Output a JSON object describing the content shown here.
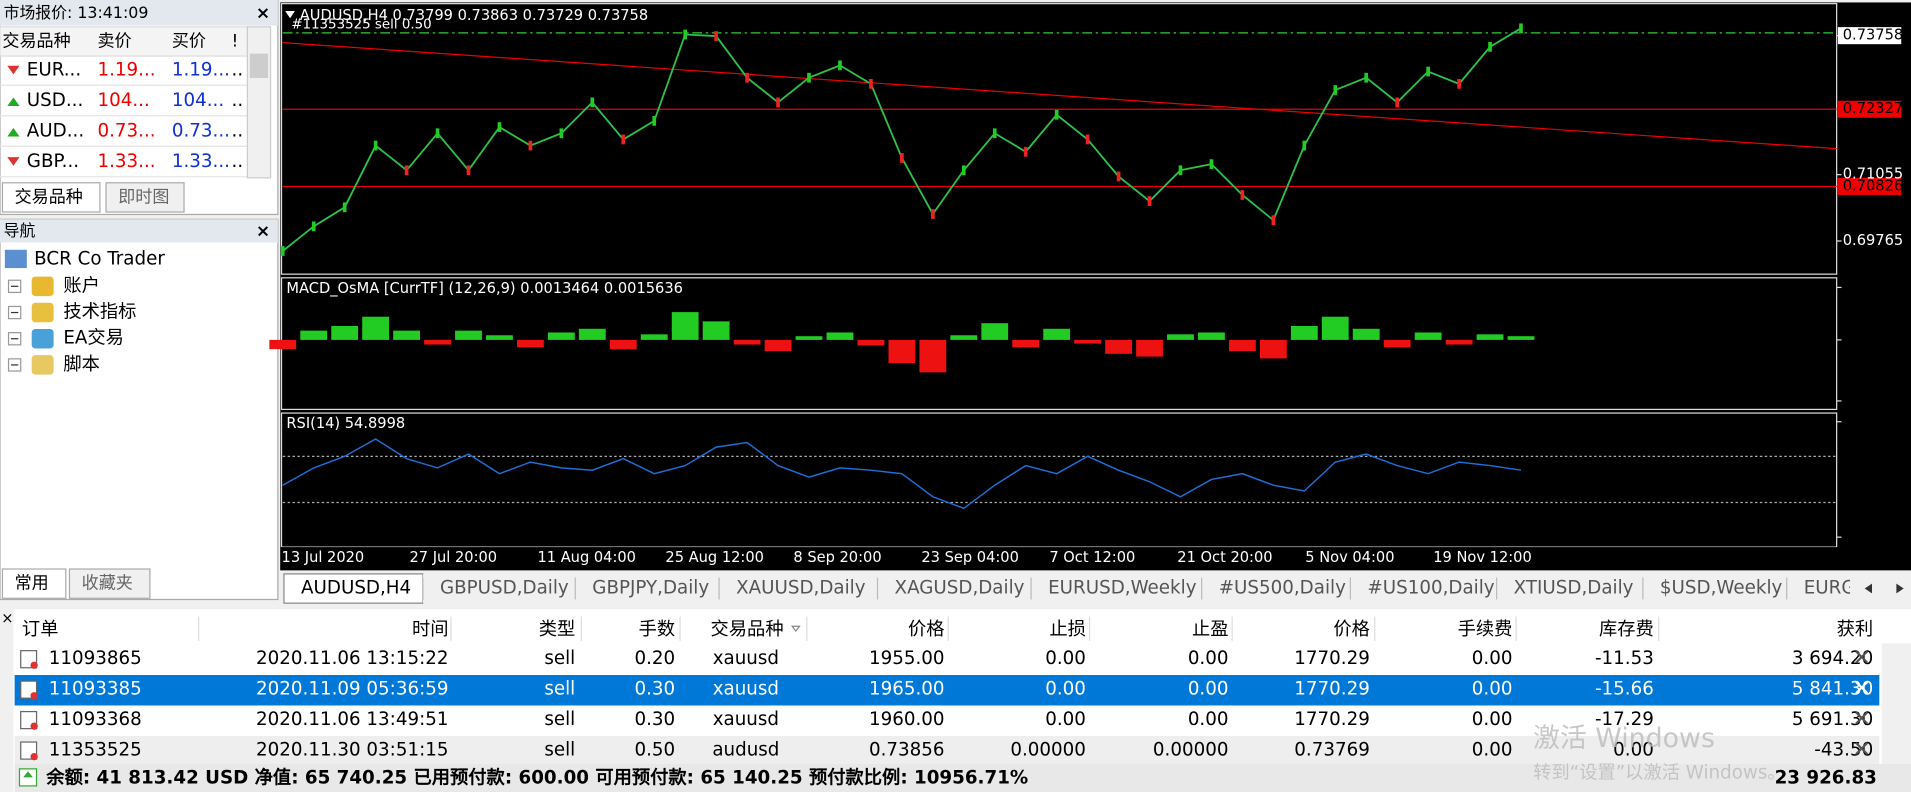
{
  "market_watch": {
    "title": "市场报价: 13:41:09",
    "columns": [
      "交易品种",
      "卖价",
      "买价",
      "!"
    ],
    "rows": [
      [
        "EUR...",
        "1.19...",
        "1.19...",
        ".."
      ],
      [
        "USD...",
        "104...",
        "104...",
        ".."
      ],
      [
        "AUD...",
        "0.73...",
        "0.73...",
        ".."
      ],
      [
        "GBP...",
        "1.33...",
        "1.33...",
        ".."
      ]
    ],
    "tabs": [
      "交易品种",
      "即时图"
    ]
  },
  "navigator": {
    "title": "导航",
    "root": "BCR Co Trader",
    "items": [
      "账户",
      "技术指标",
      "EA交易",
      "脚本"
    ],
    "tabs": [
      "常用",
      "收藏夹"
    ]
  },
  "chart": {
    "header": "AUDUSD,H4  0.73799 0.73863 0.73729 0.73758",
    "order_label": "#11353525 sell 0.50",
    "ylim": [
      0.6912,
      0.7438
    ],
    "yticks": [
      0.69765,
      0.70826,
      0.71055,
      0.72327,
      0.73758
    ],
    "close": [
      0.6957,
      0.7005,
      0.7042,
      0.7162,
      0.7114,
      0.7186,
      0.7114,
      0.7198,
      0.7162,
      0.7186,
      0.7246,
      0.7174,
      0.721,
      0.7378,
      0.7375,
      0.7294,
      0.7246,
      0.7294,
      0.7318,
      0.7282,
      0.7138,
      0.7029,
      0.7114,
      0.7186,
      0.715,
      0.7222,
      0.7174,
      0.7102,
      0.7054,
      0.7114,
      0.7126,
      0.7066,
      0.7017,
      0.7162,
      0.727,
      0.7294,
      0.7246,
      0.7306,
      0.7282,
      0.7354,
      0.739
    ],
    "x_labels": [
      "13 Jul 2020",
      "27 Jul 20:00",
      "11 Aug 04:00",
      "25 Aug 12:00",
      "8 Sep 20:00",
      "23 Sep 04:00",
      "7 Oct 12:00",
      "21 Oct 20:00",
      "5 Nov 04:00",
      "19 Nov 12:00"
    ],
    "macd": {
      "title": "MACD_OsMA [CurrTF] (12,26,9) 0.0013464 0.0015636",
      "ylim": [
        -0.0075,
        0.0067
      ],
      "yticks": [
        -0.006587,
        {
          "value": 0,
          "label": "0.00"
        },
        0.005661
      ],
      "values": [
        -0.001,
        0.001,
        0.0015,
        0.0025,
        0.001,
        -0.0005,
        0.001,
        0.0005,
        -0.0008,
        0.0008,
        0.0012,
        -0.001,
        0.0006,
        0.003,
        0.002,
        -0.0005,
        -0.0012,
        0.0004,
        0.0008,
        -0.0006,
        -0.0025,
        -0.0035,
        0.0005,
        0.0018,
        -0.0008,
        0.0012,
        -0.0004,
        -0.0015,
        -0.0018,
        0.0006,
        0.0008,
        -0.0012,
        -0.002,
        0.0015,
        0.0025,
        0.0012,
        -0.0008,
        0.0008,
        -0.0005,
        0.0006,
        0.0004
      ]
    },
    "rsi": {
      "title": "RSI(14) 54.8998",
      "ylim": [
        -8.6,
        107.5
      ],
      "yticks": [
        0,
        30,
        70,
        100
      ],
      "values": [
        45,
        60,
        70,
        85,
        68,
        60,
        72,
        55,
        65,
        60,
        58,
        68,
        55,
        62,
        78,
        82,
        62,
        52,
        60,
        58,
        55,
        35,
        25,
        45,
        62,
        55,
        70,
        58,
        48,
        35,
        50,
        55,
        45,
        40,
        65,
        72,
        62,
        55,
        65,
        62,
        58
      ]
    },
    "tabs": [
      "AUDUSD,H4",
      "GBPUSD,Daily",
      "GBPJPY,Daily",
      "XAUUSD,Daily",
      "XAGUSD,Daily",
      "EURUSD,Weekly",
      "#US500,Daily",
      "#US100,Daily",
      "XTIUSD,Daily",
      "$USD,Weekly",
      "EURG"
    ]
  },
  "terminal": {
    "columns": [
      "订单",
      "时间",
      "类型",
      "手数",
      "交易品种",
      "价格",
      "止损",
      "止盈",
      "价格",
      "手续费",
      "库存费",
      "获利"
    ],
    "rows": [
      [
        "11093865",
        "2020.11.06 13:15:22",
        "sell",
        "0.20",
        "xauusd",
        "1955.00",
        "0.00",
        "0.00",
        "1770.29",
        "0.00",
        "-11.53",
        "3 694.20"
      ],
      [
        "11093385",
        "2020.11.09 05:36:59",
        "sell",
        "0.30",
        "xauusd",
        "1965.00",
        "0.00",
        "0.00",
        "1770.29",
        "0.00",
        "-15.66",
        "5 841.30"
      ],
      [
        "11093368",
        "2020.11.06 13:49:51",
        "sell",
        "0.30",
        "xauusd",
        "1960.00",
        "0.00",
        "0.00",
        "1770.29",
        "0.00",
        "-17.29",
        "5 691.30"
      ],
      [
        "11353525",
        "2020.11.30 03:51:15",
        "sell",
        "0.50",
        "audusd",
        "0.73856",
        "0.00000",
        "0.00000",
        "0.73769",
        "0.00",
        "0.00",
        "-43.50"
      ]
    ],
    "summary": "余额: 41 813.42 USD  净值: 65 740.25  已用预付款: 600.00  可用预付款: 65 140.25  预付款比例: 10956.71%",
    "total": "23 926.83"
  },
  "watermark": {
    "line1": "激活 Windows",
    "line2": "转到“设置”以激活 Windows。"
  }
}
